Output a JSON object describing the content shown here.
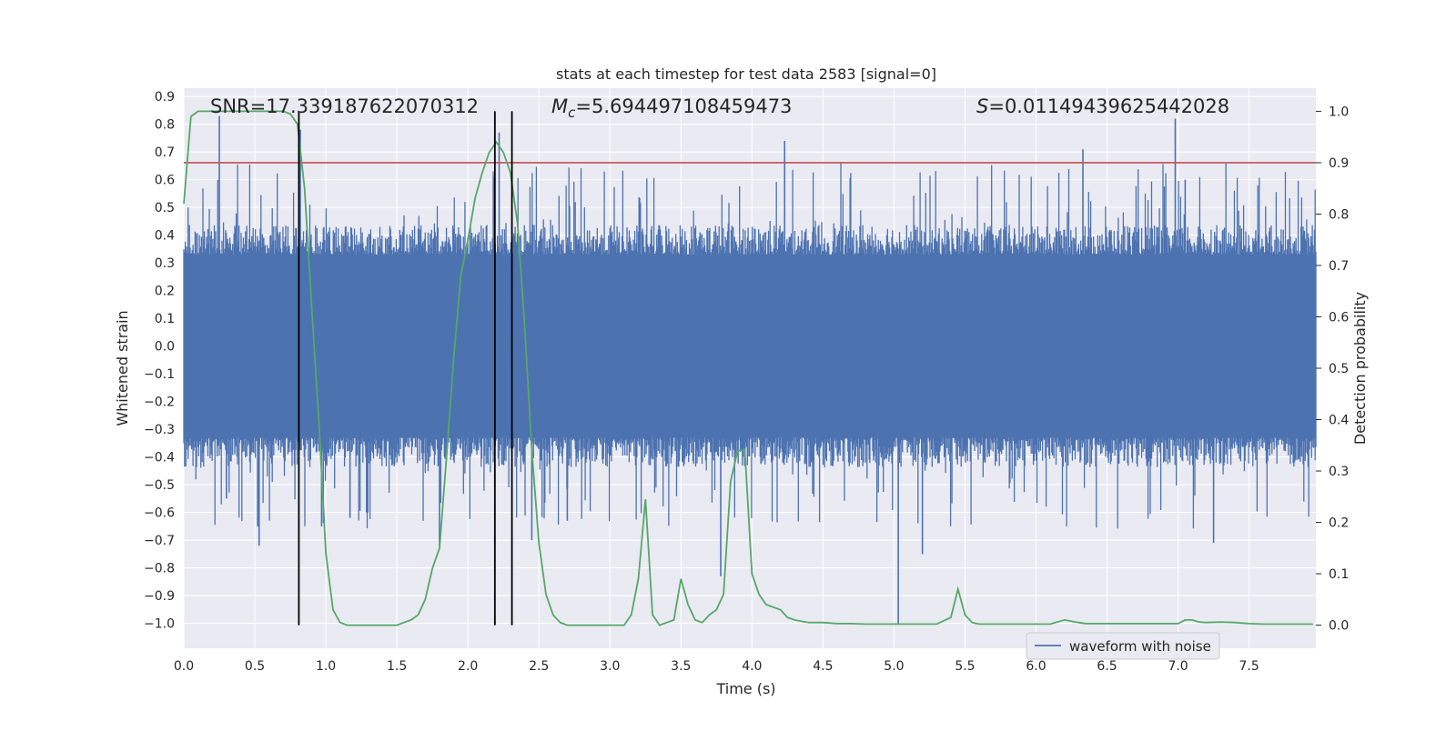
{
  "chart_data": {
    "type": "line",
    "title": "stats at each timestep for test data 2583 [signal=0]",
    "xlabel": "Time (s)",
    "ylabel_left": "Whitened strain",
    "ylabel_right": "Detection probability",
    "xlim": [
      0.0,
      7.97
    ],
    "ylim_left": [
      -1.09,
      0.93
    ],
    "ylim_right": [
      -0.045,
      1.045
    ],
    "x_ticks": [
      0.0,
      0.5,
      1.0,
      1.5,
      2.0,
      2.5,
      3.0,
      3.5,
      4.0,
      4.5,
      5.0,
      5.5,
      6.0,
      6.5,
      7.0,
      7.5
    ],
    "x_tick_labels": [
      "0.0",
      "0.5",
      "1.0",
      "1.5",
      "2.0",
      "2.5",
      "3.0",
      "3.5",
      "4.0",
      "4.5",
      "5.0",
      "5.5",
      "6.0",
      "6.5",
      "7.0",
      "7.5"
    ],
    "y_left_ticks": [
      0.9,
      0.8,
      0.7,
      0.6,
      0.5,
      0.4,
      0.3,
      0.2,
      0.1,
      0.0,
      -0.1,
      -0.2,
      -0.3,
      -0.4,
      -0.5,
      -0.6,
      -0.7,
      -0.8,
      -0.9,
      -1.0
    ],
    "y_left_tick_labels": [
      "0.9",
      "0.8",
      "0.7",
      "0.6",
      "0.5",
      "0.4",
      "0.3",
      "0.2",
      "0.1",
      "0.0",
      "−0.1",
      "−0.2",
      "−0.3",
      "−0.4",
      "−0.5",
      "−0.6",
      "−0.7",
      "−0.8",
      "−0.9",
      "−1.0"
    ],
    "y_right_ticks": [
      1.0,
      0.9,
      0.8,
      0.7,
      0.6,
      0.5,
      0.4,
      0.3,
      0.2,
      0.1,
      0.0
    ],
    "y_right_tick_labels": [
      "1.0",
      "0.9",
      "0.8",
      "0.7",
      "0.6",
      "0.5",
      "0.4",
      "0.3",
      "0.2",
      "0.1",
      "0.0"
    ],
    "grid": true,
    "annotations": {
      "snr": "SNR=17.339187622070312",
      "mc": "=5.694497108459473",
      "s": "=0.011494396254420​28"
    },
    "annotation_symbols": {
      "mc_symbol": "M",
      "mc_sub": "c",
      "s_symbol": "S"
    },
    "threshold_right": 0.9,
    "vertical_lines_x": [
      0.81,
      2.19,
      2.31
    ],
    "waveform": {
      "name": "waveform with noise",
      "core_amplitude": 0.33,
      "envelope_typical": 0.45,
      "spikes": [
        [
          0.25,
          0.83
        ],
        [
          0.82,
          0.78
        ],
        [
          2.22,
          0.77
        ],
        [
          4.23,
          0.74
        ],
        [
          6.33,
          0.71
        ],
        [
          6.98,
          0.82
        ],
        [
          7.05,
          0.6
        ],
        [
          0.52,
          -0.65
        ],
        [
          0.53,
          -0.72
        ],
        [
          0.97,
          -0.65
        ],
        [
          1.8,
          -0.72
        ],
        [
          2.45,
          -0.7
        ],
        [
          3.78,
          -0.83
        ],
        [
          5.03,
          -1.0
        ],
        [
          5.2,
          -0.75
        ],
        [
          7.25,
          -0.71
        ],
        [
          3.95,
          -0.4
        ],
        [
          1.17,
          -0.62
        ],
        [
          0.3,
          -0.55
        ],
        [
          2.7,
          -0.63
        ]
      ]
    },
    "probability": {
      "x": [
        0.0,
        0.05,
        0.1,
        0.15,
        0.2,
        0.3,
        0.4,
        0.5,
        0.6,
        0.7,
        0.75,
        0.8,
        0.85,
        0.9,
        0.95,
        1.0,
        1.05,
        1.1,
        1.15,
        1.2,
        1.3,
        1.4,
        1.5,
        1.55,
        1.6,
        1.65,
        1.7,
        1.75,
        1.8,
        1.85,
        1.9,
        1.95,
        2.0,
        2.05,
        2.1,
        2.15,
        2.2,
        2.25,
        2.3,
        2.35,
        2.4,
        2.45,
        2.5,
        2.55,
        2.6,
        2.65,
        2.7,
        2.75,
        2.8,
        2.9,
        3.0,
        3.1,
        3.15,
        3.2,
        3.25,
        3.3,
        3.35,
        3.4,
        3.45,
        3.5,
        3.55,
        3.6,
        3.65,
        3.7,
        3.75,
        3.8,
        3.85,
        3.9,
        3.95,
        4.0,
        4.05,
        4.1,
        4.15,
        4.2,
        4.25,
        4.3,
        4.4,
        4.5,
        4.6,
        4.7,
        4.8,
        4.9,
        5.0,
        5.1,
        5.2,
        5.3,
        5.4,
        5.45,
        5.5,
        5.55,
        5.6,
        5.7,
        5.8,
        5.9,
        6.0,
        6.1,
        6.2,
        6.3,
        6.35,
        6.4,
        6.5,
        6.6,
        6.7,
        6.8,
        6.9,
        7.0,
        7.05,
        7.1,
        7.15,
        7.2,
        7.3,
        7.4,
        7.5,
        7.6,
        7.7,
        7.8,
        7.9,
        7.95
      ],
      "y": [
        0.82,
        0.99,
        1.0,
        1.0,
        1.0,
        1.0,
        1.0,
        1.0,
        1.0,
        1.0,
        0.995,
        0.975,
        0.85,
        0.62,
        0.4,
        0.14,
        0.03,
        0.005,
        0.0,
        0.0,
        0.0,
        0.0,
        0.0,
        0.005,
        0.01,
        0.02,
        0.05,
        0.11,
        0.15,
        0.33,
        0.52,
        0.68,
        0.75,
        0.83,
        0.88,
        0.92,
        0.94,
        0.92,
        0.88,
        0.78,
        0.58,
        0.34,
        0.16,
        0.06,
        0.02,
        0.005,
        0.0,
        0.0,
        0.0,
        0.0,
        0.0,
        0.0,
        0.02,
        0.09,
        0.245,
        0.02,
        0.0,
        0.005,
        0.01,
        0.09,
        0.04,
        0.01,
        0.005,
        0.02,
        0.03,
        0.06,
        0.28,
        0.34,
        0.34,
        0.1,
        0.06,
        0.04,
        0.035,
        0.03,
        0.015,
        0.01,
        0.005,
        0.005,
        0.003,
        0.003,
        0.002,
        0.002,
        0.002,
        0.002,
        0.002,
        0.002,
        0.015,
        0.07,
        0.02,
        0.005,
        0.002,
        0.002,
        0.002,
        0.002,
        0.002,
        0.002,
        0.01,
        0.005,
        0.003,
        0.003,
        0.003,
        0.003,
        0.003,
        0.003,
        0.003,
        0.003,
        0.01,
        0.01,
        0.006,
        0.005,
        0.006,
        0.005,
        0.003,
        0.002,
        0.002,
        0.002,
        0.002,
        0.002
      ]
    },
    "colors": {
      "background": "#eaeaf2",
      "grid": "#ffffff",
      "waveform": "#4c72b0",
      "probability": "#55a868",
      "threshold": "#c44e52",
      "vlines": "#000000",
      "text": "#262626"
    },
    "legend": {
      "placement": "lower-right",
      "label": "waveform with noise"
    }
  }
}
